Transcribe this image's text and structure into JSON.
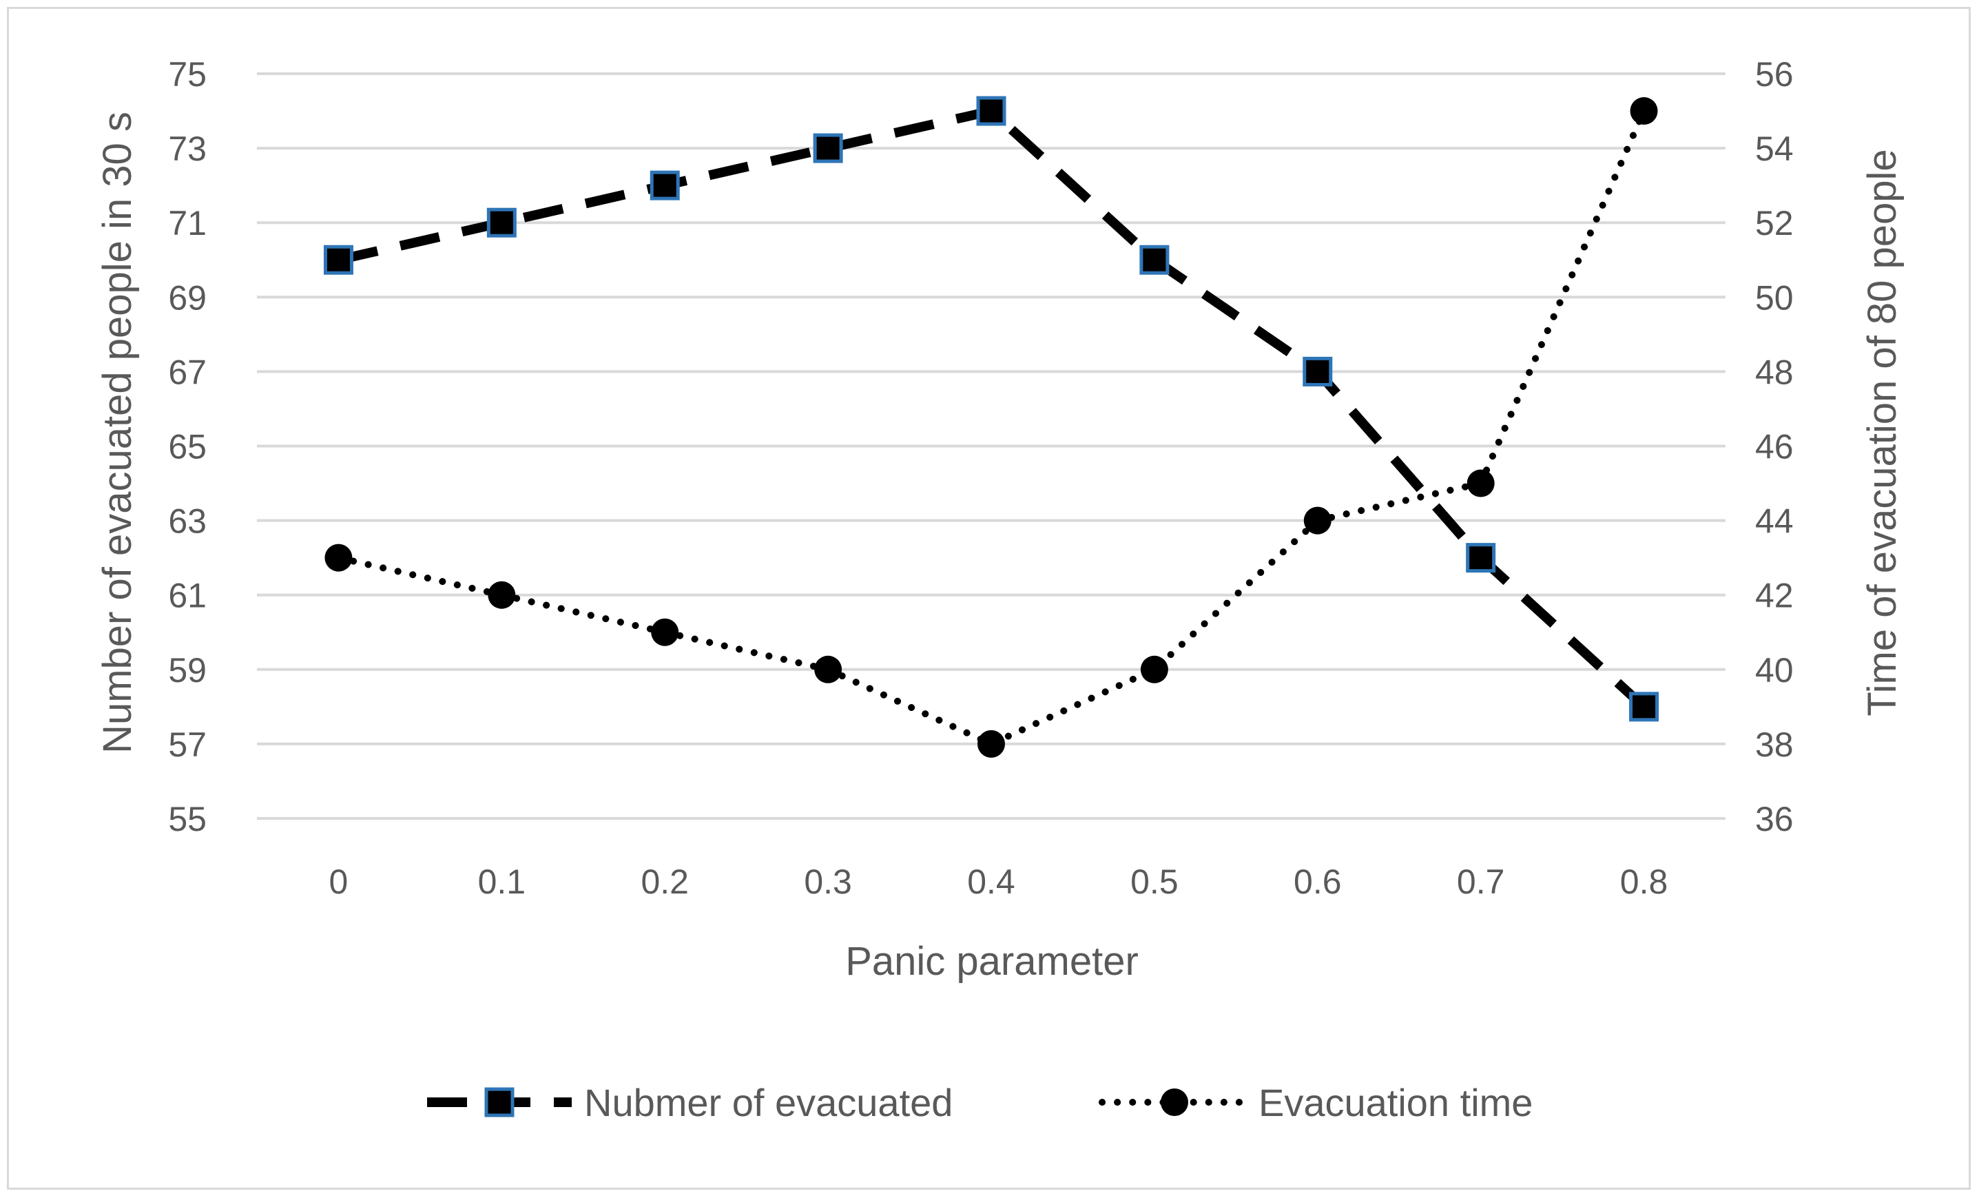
{
  "chart_data": {
    "type": "line",
    "title": "",
    "xlabel": "Panic parameter",
    "ylabel_left": "Number of evacuated people  in 30 s",
    "ylabel_right": "Time of evacuation of 80 people",
    "categories": [
      "0",
      "0.1",
      "0.2",
      "0.3",
      "0.4",
      "0.5",
      "0.6",
      "0.7",
      "0.8"
    ],
    "y_left": {
      "min": 55,
      "max": 75,
      "step": 2,
      "ticks": [
        "55",
        "57",
        "59",
        "61",
        "63",
        "65",
        "67",
        "69",
        "71",
        "73",
        "75"
      ]
    },
    "y_right": {
      "min": 36,
      "max": 56,
      "step": 2,
      "ticks": [
        "36",
        "38",
        "40",
        "42",
        "44",
        "46",
        "48",
        "50",
        "52",
        "54",
        "56"
      ]
    },
    "grid": true,
    "legend_position": "bottom",
    "series": [
      {
        "name": "Nubmer of evacuated",
        "axis": "left",
        "style": "dashed",
        "marker": "square",
        "values": [
          70,
          71,
          72,
          73,
          74,
          70,
          67,
          62,
          58
        ]
      },
      {
        "name": "Evacuation time",
        "axis": "right",
        "style": "dotted",
        "marker": "circle",
        "values": [
          43,
          42,
          41,
          40,
          38,
          40,
          44,
          45,
          55
        ]
      }
    ],
    "colors": {
      "line": "#000000",
      "marker_edge": "#2e75b6",
      "grid": "#d9d9d9",
      "text": "#595959"
    }
  }
}
